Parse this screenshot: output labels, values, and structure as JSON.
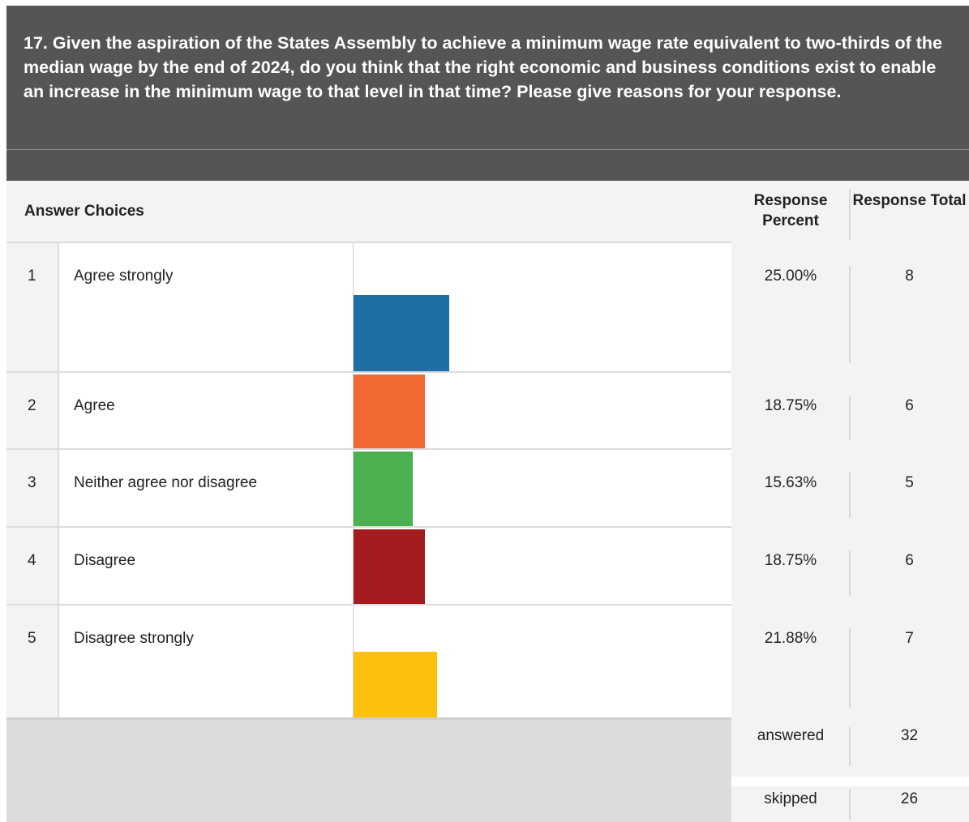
{
  "question": {
    "text": "17. Given the aspiration of the States Assembly to achieve a minimum wage rate equivalent to two-thirds of the median wage by the end of 2024, do you think that the right economic and business conditions exist to enable an increase in the minimum wage to that level in that time? Please give reasons for your response."
  },
  "table": {
    "answer_choices_header": "Answer Choices",
    "response_percent_header": "Response Percent",
    "response_total_header": "Response Total",
    "answered_label": "answered",
    "answered_value": "32",
    "skipped_label": "skipped",
    "skipped_value": "26"
  },
  "chart_data": {
    "type": "bar",
    "orientation": "horizontal",
    "categories": [
      "Agree strongly",
      "Agree",
      "Neither agree nor disagree",
      "Disagree",
      "Disagree strongly"
    ],
    "numbers": [
      "1",
      "2",
      "3",
      "4",
      "5"
    ],
    "values": [
      25.0,
      18.75,
      15.63,
      18.75,
      21.88
    ],
    "value_labels": [
      "25.00%",
      "18.75%",
      "15.63%",
      "18.75%",
      "21.88%"
    ],
    "totals": [
      "8",
      "6",
      "5",
      "6",
      "7"
    ],
    "colors": [
      "#1f6ea6",
      "#f06932",
      "#4caf50",
      "#a51c1f",
      "#fdc00c"
    ]
  }
}
